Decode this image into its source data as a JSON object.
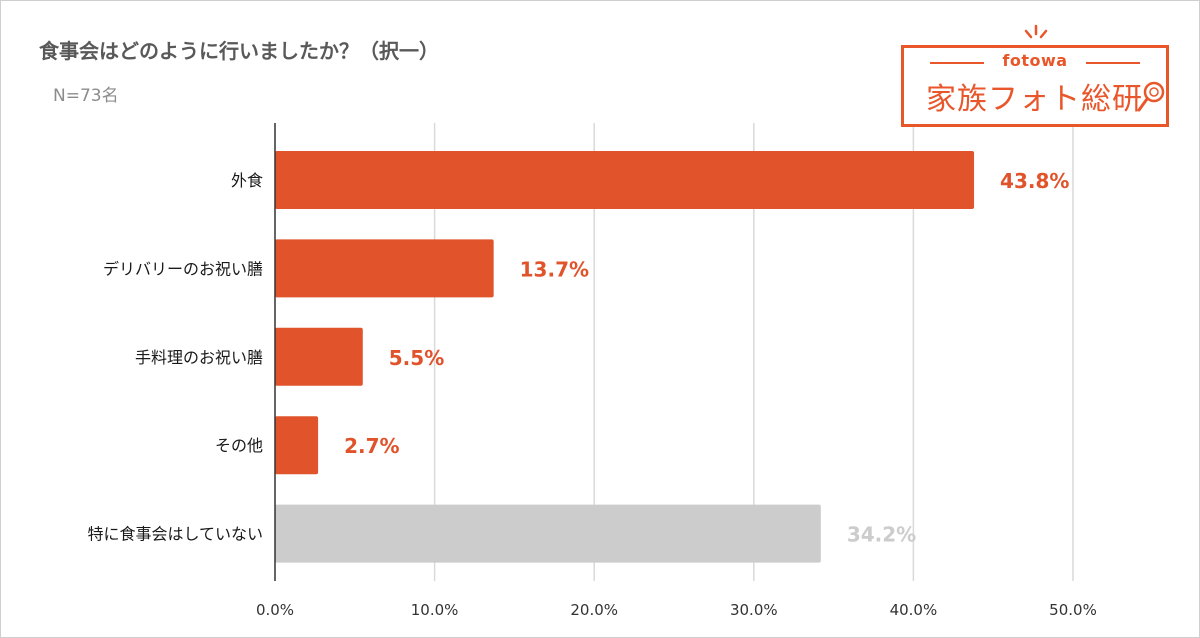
{
  "chart_data": {
    "type": "bar",
    "orientation": "horizontal",
    "title": "食事会はどのように行いましたか？（択一）",
    "subtitle": "N=73名",
    "categories": [
      "外食",
      "デリバリーのお祝い膳",
      "手料理のお祝い膳",
      "その他",
      "特に食事会はしていない"
    ],
    "values": [
      43.8,
      13.7,
      5.5,
      2.7,
      34.2
    ],
    "value_labels": [
      "43.8%",
      "13.7%",
      "5.5%",
      "2.7%",
      "34.2%"
    ],
    "bar_colors": [
      "#e0532b",
      "#e0532b",
      "#e0532b",
      "#e0532b",
      "#cccccc"
    ],
    "label_colors": [
      "#e0532b",
      "#e0532b",
      "#e0532b",
      "#e0532b",
      "#cccccc"
    ],
    "xlim": [
      0,
      50
    ],
    "xticks": [
      "0.0%",
      "10.0%",
      "20.0%",
      "30.0%",
      "40.0%",
      "50.0%"
    ],
    "grid": true,
    "xlabel": "",
    "ylabel": ""
  },
  "logo": {
    "brand": "fotowa",
    "name": "家族フォト総研"
  },
  "colors": {
    "accent": "#e8562a",
    "gridline": "#d9d9d9"
  }
}
